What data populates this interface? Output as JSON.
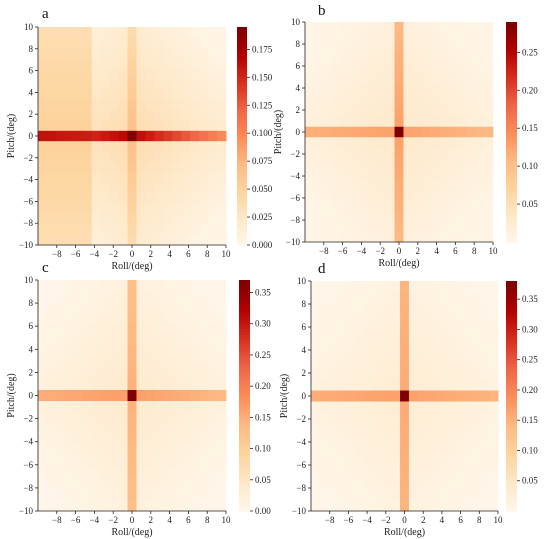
{
  "chart_data": [
    {
      "type": "heatmap",
      "panel_label": "a",
      "xlabel": "Roll/(deg)",
      "ylabel": "Pitch/(deg)",
      "x_range": [
        -10,
        10
      ],
      "y_range": [
        -10,
        10
      ],
      "x_ticks": [
        "-8",
        "-6",
        "-4",
        "-2",
        "0",
        "2",
        "4",
        "6",
        "8",
        "10"
      ],
      "y_ticks": [
        "10",
        "8",
        "6",
        "4",
        "2",
        "0",
        "-2",
        "-4",
        "-6",
        "-8",
        "-10"
      ],
      "colorbar_ticks": [
        0.0,
        0.025,
        0.05,
        0.075,
        0.1,
        0.125,
        0.15,
        0.175
      ],
      "colorbar_tick_labels": [
        "0.000",
        "0.025",
        "0.050",
        "0.075",
        "0.100",
        "0.125",
        "0.150",
        "0.175"
      ],
      "vmin": 0.0,
      "vmax": 0.195,
      "colormap": "OrRd",
      "peak": {
        "roll": 0,
        "pitch": 0,
        "value": 0.195
      },
      "row_band": {
        "pitch": 0,
        "value_range": [
          0.1,
          0.17
        ]
      },
      "column_band": {
        "roll": 0,
        "value_range": [
          0.04,
          0.07
        ]
      },
      "background_value_range": [
        0.005,
        0.04
      ]
    },
    {
      "type": "heatmap",
      "panel_label": "b",
      "xlabel": "Roll/(deg)",
      "ylabel": "Pitch/(deg)",
      "x_range": [
        -10,
        10
      ],
      "y_range": [
        -10,
        10
      ],
      "x_ticks": [
        "-8",
        "-6",
        "-4",
        "-2",
        "0",
        "2",
        "4",
        "6",
        "8",
        "10"
      ],
      "y_ticks": [
        "10",
        "8",
        "6",
        "4",
        "2",
        "0",
        "-2",
        "-4",
        "-6",
        "-8",
        "-10"
      ],
      "colorbar_ticks": [
        0.05,
        0.1,
        0.15,
        0.2,
        0.25
      ],
      "colorbar_tick_labels": [
        "0.05",
        "0.10",
        "0.15",
        "0.20",
        "0.25"
      ],
      "vmin": 0.0,
      "vmax": 0.29,
      "colormap": "OrRd",
      "peak": {
        "roll": 0,
        "pitch": 0,
        "value": 0.29
      },
      "row_band": {
        "pitch": 0,
        "value_range": [
          0.11,
          0.13
        ]
      },
      "column_band": {
        "roll": 0,
        "value_range": [
          0.11,
          0.13
        ]
      },
      "background_value_range": [
        0.005,
        0.035
      ]
    },
    {
      "type": "heatmap",
      "panel_label": "c",
      "xlabel": "Roll/(deg)",
      "ylabel": "Pitch/(deg)",
      "x_range": [
        -10,
        10
      ],
      "y_range": [
        -10,
        10
      ],
      "x_ticks": [
        "-8",
        "-6",
        "-4",
        "-2",
        "0",
        "2",
        "4",
        "6",
        "8",
        "10"
      ],
      "y_ticks": [
        "10",
        "8",
        "6",
        "4",
        "2",
        "0",
        "-2",
        "-4",
        "-6",
        "-8",
        "-10"
      ],
      "colorbar_ticks": [
        0.0,
        0.05,
        0.1,
        0.15,
        0.2,
        0.25,
        0.3,
        0.35
      ],
      "colorbar_tick_labels": [
        "0.00",
        "0.05",
        "0.10",
        "0.15",
        "0.20",
        "0.25",
        "0.30",
        "0.35"
      ],
      "vmin": 0.0,
      "vmax": 0.37,
      "colormap": "OrRd",
      "peak": {
        "roll": 0,
        "pitch": 0,
        "value": 0.37
      },
      "row_band": {
        "pitch": 0,
        "value_range": [
          0.14,
          0.17
        ]
      },
      "column_band": {
        "roll": 0,
        "value_range": [
          0.13,
          0.15
        ]
      },
      "background_value_range": [
        0.005,
        0.04
      ]
    },
    {
      "type": "heatmap",
      "panel_label": "d",
      "xlabel": "Roll/(deg)",
      "ylabel": "Pitch/(deg)",
      "x_range": [
        -10,
        10
      ],
      "y_range": [
        -10,
        10
      ],
      "x_ticks": [
        "-8",
        "-6",
        "-4",
        "-2",
        "0",
        "2",
        "4",
        "6",
        "8",
        "10"
      ],
      "y_ticks": [
        "10",
        "8",
        "6",
        "4",
        "2",
        "0",
        "-2",
        "-4",
        "-6",
        "-8",
        "-10"
      ],
      "colorbar_ticks": [
        0.05,
        0.1,
        0.15,
        0.2,
        0.25,
        0.3,
        0.35
      ],
      "colorbar_tick_labels": [
        "0.05",
        "0.10",
        "0.15",
        "0.20",
        "0.25",
        "0.30",
        "0.35"
      ],
      "vmin": 0.0,
      "vmax": 0.38,
      "colormap": "OrRd",
      "peak": {
        "roll": 0,
        "pitch": 0,
        "value": 0.38
      },
      "row_band": {
        "pitch": 0,
        "value_range": [
          0.15,
          0.17
        ]
      },
      "column_band": {
        "roll": 0,
        "value_range": [
          0.15,
          0.16
        ]
      },
      "background_value_range": [
        0.005,
        0.035
      ]
    }
  ]
}
